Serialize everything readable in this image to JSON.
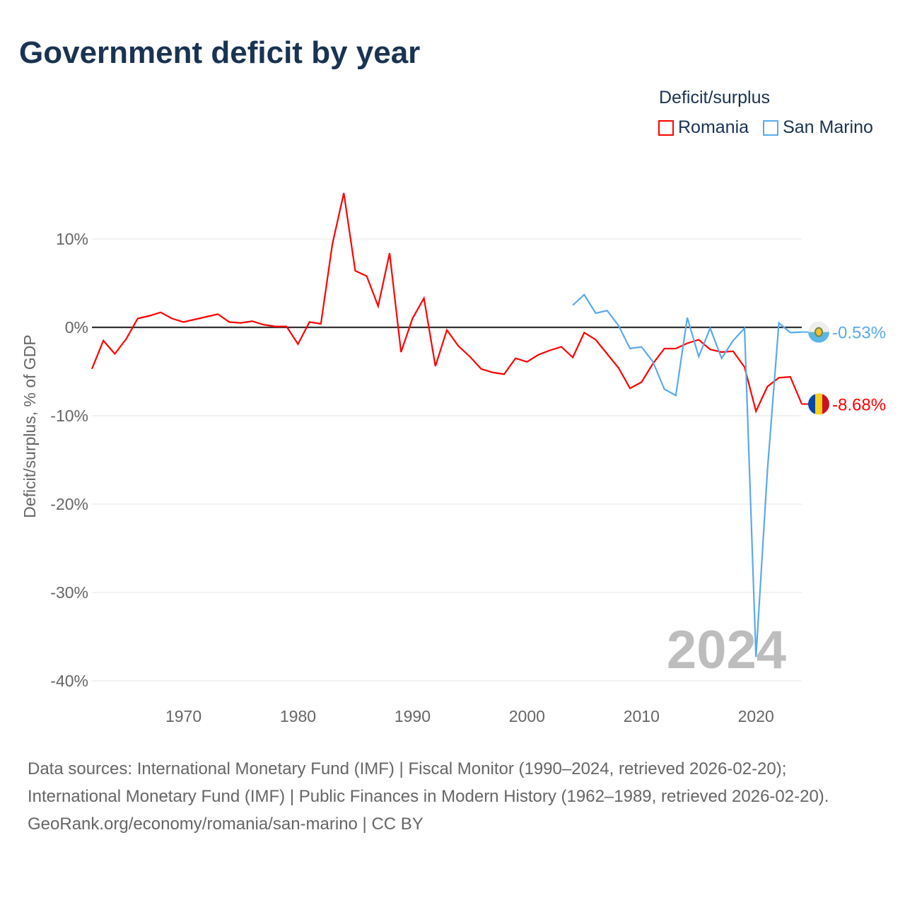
{
  "title": "Government deficit by year",
  "legend": {
    "title": "Deficit/surplus"
  },
  "chart_data": {
    "type": "line",
    "title": "Government deficit by year",
    "xlabel": "",
    "ylabel": "Deficit/surplus, % of GDP",
    "xlim": [
      1962,
      2024
    ],
    "ylim": [
      -40,
      15
    ],
    "x_ticks": [
      1970,
      1980,
      1990,
      2000,
      2010,
      2020
    ],
    "x_tick_labels": [
      "1970",
      "1980",
      "1990",
      "2000",
      "2010",
      "2020"
    ],
    "y_ticks": [
      10,
      0,
      -10,
      -20,
      -30,
      -40
    ],
    "y_tick_labels": [
      "10%",
      "0%",
      "-10%",
      "-20%",
      "-30%",
      "-40%"
    ],
    "grid": true,
    "legend_position": "top-right",
    "year_watermark": "2024",
    "series": [
      {
        "name": "Romania",
        "color": "#ff0000",
        "end_label": "-8.68%",
        "x": [
          1962,
          1963,
          1964,
          1965,
          1966,
          1967,
          1968,
          1969,
          1970,
          1971,
          1972,
          1973,
          1974,
          1975,
          1976,
          1977,
          1978,
          1979,
          1980,
          1981,
          1982,
          1983,
          1984,
          1985,
          1986,
          1987,
          1988,
          1989,
          1990,
          1991,
          1992,
          1993,
          1994,
          1995,
          1996,
          1997,
          1998,
          1999,
          2000,
          2001,
          2002,
          2003,
          2004,
          2005,
          2006,
          2007,
          2008,
          2009,
          2010,
          2011,
          2012,
          2013,
          2014,
          2015,
          2016,
          2017,
          2018,
          2019,
          2020,
          2021,
          2022,
          2023,
          2024
        ],
        "values": [
          -4.7,
          -1.5,
          -3.0,
          -1.3,
          1.0,
          1.3,
          1.7,
          1.0,
          0.6,
          0.9,
          1.2,
          1.5,
          0.6,
          0.5,
          0.7,
          0.3,
          0.1,
          0.1,
          -1.9,
          0.6,
          0.4,
          9.4,
          15.2,
          6.4,
          5.8,
          2.4,
          8.4,
          -2.8,
          1.0,
          3.3,
          -4.4,
          -0.3,
          -2.1,
          -3.3,
          -4.7,
          -5.1,
          -5.3,
          -3.5,
          -3.9,
          -3.1,
          -2.6,
          -2.2,
          -3.4,
          -0.6,
          -1.4,
          -3.0,
          -4.6,
          -6.9,
          -6.2,
          -4.1,
          -2.4,
          -2.4,
          -1.8,
          -1.4,
          -2.5,
          -2.8,
          -2.7,
          -4.5,
          -9.5,
          -6.7,
          -5.7,
          -5.6,
          -8.68
        ]
      },
      {
        "name": "San Marino",
        "color": "#5aa9ee",
        "end_label": "-0.53%",
        "x": [
          2004,
          2005,
          2006,
          2007,
          2008,
          2009,
          2010,
          2011,
          2012,
          2013,
          2014,
          2015,
          2016,
          2017,
          2018,
          2019,
          2020,
          2021,
          2022,
          2023,
          2024
        ],
        "values": [
          2.5,
          3.7,
          1.6,
          1.9,
          0.2,
          -2.4,
          -2.2,
          -3.9,
          -7.0,
          -7.7,
          1.1,
          -3.3,
          -0.1,
          -3.5,
          -1.5,
          -0.1,
          -37.3,
          -16.2,
          0.5,
          -0.6,
          -0.53
        ]
      }
    ]
  },
  "footer": {
    "sources": "Data sources: International Monetary Fund (IMF) | Fiscal Monitor (1990–2024, retrieved 2026-02-20); International Monetary Fund (IMF) | Public Finances in Modern History (1962–1989, retrieved 2026-02-20).",
    "credit": "GeoRank.org/economy/romania/san-marino | CC BY"
  }
}
